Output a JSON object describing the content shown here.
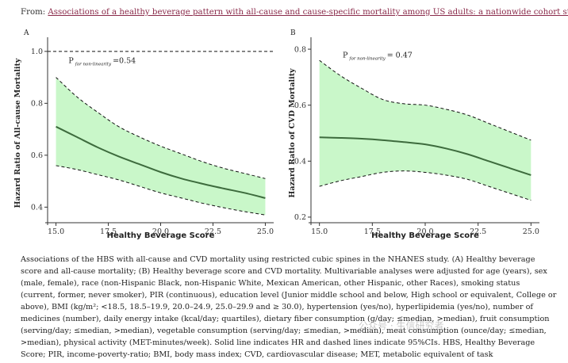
{
  "source": {
    "prefix": "From: ",
    "link_text": "Associations of a healthy beverage pattern with all-cause and cause-specific mortality among US adults: a nationwide cohort study"
  },
  "chart_data": [
    {
      "type": "line",
      "panel_label": "A",
      "xlabel": "Healthy Beverage Score",
      "ylabel": "Hazard Ratio of All-cause Mortality",
      "xlim": [
        14.6,
        25.4
      ],
      "ylim": [
        0.34,
        1.03
      ],
      "xticks": [
        15.0,
        17.5,
        20.0,
        22.5,
        25.0
      ],
      "yticks": [
        0.4,
        0.6,
        0.8,
        1.0
      ],
      "xtick_labels": [
        "15.0",
        "17.5",
        "20.0",
        "22.5",
        "25.0"
      ],
      "ytick_labels": [
        "0.4",
        "0.6",
        "0.8",
        "1.0"
      ],
      "reference_line": 1.0,
      "annotation": {
        "main": "P",
        "sub": "for non-linearity",
        "value": "=0.54",
        "x": 15.6,
        "y": 0.955
      },
      "x": [
        15.0,
        16.0,
        17.0,
        18.0,
        19.0,
        20.0,
        21.0,
        22.0,
        23.0,
        24.0,
        25.0
      ],
      "hr": [
        0.71,
        0.67,
        0.63,
        0.595,
        0.565,
        0.535,
        0.51,
        0.49,
        0.472,
        0.455,
        0.435
      ],
      "lower": [
        0.56,
        0.545,
        0.525,
        0.505,
        0.48,
        0.455,
        0.435,
        0.415,
        0.398,
        0.383,
        0.37
      ],
      "upper": [
        0.9,
        0.825,
        0.765,
        0.71,
        0.67,
        0.635,
        0.605,
        0.575,
        0.55,
        0.53,
        0.51
      ]
    },
    {
      "type": "line",
      "panel_label": "B",
      "xlabel": "Healthy Beverage Score",
      "ylabel": "Hazard Ratio of CVD Mortality",
      "xlim": [
        14.6,
        25.4
      ],
      "ylim": [
        0.18,
        0.82
      ],
      "xticks": [
        15.0,
        17.5,
        20.0,
        22.5,
        25.0
      ],
      "yticks": [
        0.2,
        0.4,
        0.6,
        0.8
      ],
      "xtick_labels": [
        "15.0",
        "17.5",
        "20.0",
        "22.5",
        "25.0"
      ],
      "ytick_labels": [
        "0.2",
        "0.4",
        "0.6",
        "0.8"
      ],
      "annotation": {
        "main": "P",
        "sub": "for non-linearity",
        "value": "= 0.47",
        "x": 16.1,
        "y": 0.77
      },
      "x": [
        15.0,
        16.0,
        17.0,
        18.0,
        19.0,
        20.0,
        21.0,
        22.0,
        23.0,
        24.0,
        25.0
      ],
      "hr": [
        0.485,
        0.483,
        0.48,
        0.475,
        0.468,
        0.46,
        0.445,
        0.425,
        0.4,
        0.375,
        0.35
      ],
      "lower": [
        0.31,
        0.33,
        0.345,
        0.36,
        0.365,
        0.36,
        0.35,
        0.335,
        0.31,
        0.285,
        0.26
      ],
      "upper": [
        0.76,
        0.705,
        0.66,
        0.62,
        0.605,
        0.6,
        0.585,
        0.565,
        0.535,
        0.505,
        0.475
      ]
    }
  ],
  "caption": {
    "text": "Associations of the HBS with all-cause and CVD mortality using restricted cubic spines in the NHANES study. (A) Healthy beverage score and all-cause mortality; (B) Healthy beverage score and CVD mortality. Multivariable analyses were adjusted for age (years), sex (male, female), race (non-Hispanic Black, non-Hispanic White, Mexican American, other Hispanic, other Races), smoking status (current, former, never smoker), PIR (continuous), education level (Junior middle school and below, High school or equivalent, College or above), BMI (kg/m²; <18.5, 18.5–19.9, 20.0–24.9, 25.0–29.9 and ≥ 30.0), hypertension (yes/no), hyperlipidemia (yes/no), number of medicines (number), daily energy intake (kcal/day; quartiles), dietary fiber consumption (g/day; ≤median, >median), fruit consumption (serving/day; ≤median, >median), vegetable consumption (serving/day; ≤median, >median), meat consumption (ounce/day; ≤median, >median), physical activity (MET-minutes/week). Solid line indicates HR and dashed lines indicate 95%CIs. HBS, Healthy Beverage Score; PIR, income-poverty-ratio; BMI, body mass index; CVD, cardiovascular disease; MET, metabolic equivalent of task"
  },
  "watermark": "公众号 · 生信研究者",
  "colors": {
    "band": "#c9f7c9",
    "line": "#3d6b3d",
    "dash": "#111111",
    "link": "#8a2a4a"
  }
}
